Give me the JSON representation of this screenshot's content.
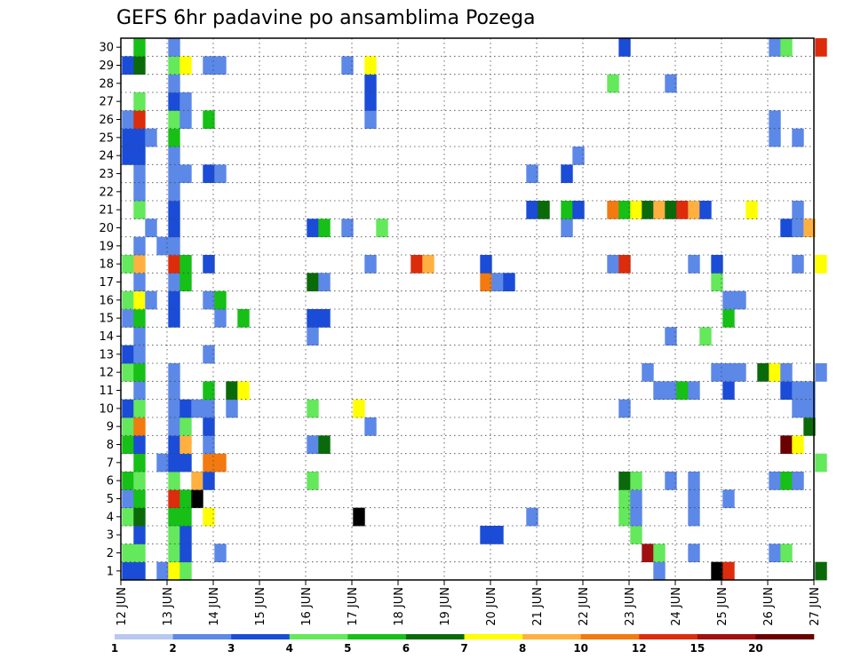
{
  "chart_data": {
    "type": "heatmap",
    "title": "GEFS 6hr padavine po ansamblima Pozega",
    "x_tick_labels": [
      "12 JUN",
      "13 JUN",
      "14 JUN",
      "15 JUN",
      "16 JUN",
      "17 JUN",
      "18 JUN",
      "19 JUN",
      "20 JUN",
      "21 JUN",
      "22 JUN",
      "23 JUN",
      "24 JUN",
      "25 JUN",
      "26 JUN",
      "27 JUN"
    ],
    "y_tick_labels": [
      "1",
      "2",
      "3",
      "4",
      "5",
      "6",
      "7",
      "8",
      "9",
      "10",
      "11",
      "12",
      "13",
      "14",
      "15",
      "16",
      "17",
      "18",
      "19",
      "20",
      "21",
      "22",
      "23",
      "24",
      "25",
      "26",
      "27",
      "28",
      "29",
      "30"
    ],
    "x_unit": "6-hour step starting 12 JUN 00Z",
    "ylim": [
      0.5,
      30.5
    ],
    "grid": "dotted",
    "colorbar": {
      "labels": [
        "1",
        "2",
        "3",
        "4",
        "5",
        "6",
        "7",
        "8",
        "10",
        "12",
        "15",
        "20"
      ],
      "colors": [
        "#b8c8f0",
        "#5c88e8",
        "#1a4cd8",
        "#64e85c",
        "#16c016",
        "#0a6a0a",
        "#ffff00",
        "#ffb040",
        "#f27a10",
        "#dc2c0c",
        "#a01010",
        "#6a0000"
      ]
    },
    "cells": [
      [
        1,
        1,
        2
      ],
      [
        1,
        2,
        3
      ],
      [
        1,
        4,
        3
      ],
      [
        1,
        5,
        1
      ],
      [
        1,
        6,
        4
      ],
      [
        1,
        8,
        4
      ],
      [
        1,
        9,
        3
      ],
      [
        1,
        10,
        2
      ],
      [
        1,
        12,
        3
      ],
      [
        1,
        13,
        2
      ],
      [
        1,
        15,
        1
      ],
      [
        1,
        16,
        3
      ],
      [
        1,
        18,
        3
      ],
      [
        1,
        24,
        2
      ],
      [
        1,
        25,
        2
      ],
      [
        1,
        26,
        1
      ],
      [
        1,
        29,
        2
      ],
      [
        2,
        1,
        2
      ],
      [
        2,
        2,
        3
      ],
      [
        2,
        3,
        2
      ],
      [
        2,
        4,
        5
      ],
      [
        2,
        5,
        4
      ],
      [
        2,
        6,
        3
      ],
      [
        2,
        7,
        4
      ],
      [
        2,
        8,
        2
      ],
      [
        2,
        9,
        8
      ],
      [
        2,
        10,
        3
      ],
      [
        2,
        11,
        1
      ],
      [
        2,
        12,
        4
      ],
      [
        2,
        13,
        1
      ],
      [
        2,
        14,
        1
      ],
      [
        2,
        15,
        4
      ],
      [
        2,
        16,
        6
      ],
      [
        2,
        17,
        1
      ],
      [
        2,
        18,
        7
      ],
      [
        2,
        19,
        1
      ],
      [
        2,
        21,
        3
      ],
      [
        2,
        22,
        1
      ],
      [
        2,
        23,
        1
      ],
      [
        2,
        24,
        2
      ],
      [
        2,
        25,
        2
      ],
      [
        2,
        26,
        9
      ],
      [
        2,
        27,
        3
      ],
      [
        2,
        29,
        5
      ],
      [
        2,
        30,
        4
      ],
      [
        3,
        16,
        1
      ],
      [
        3,
        20,
        1
      ],
      [
        3,
        25,
        1
      ],
      [
        4,
        1,
        1
      ],
      [
        4,
        7,
        1
      ],
      [
        4,
        19,
        1
      ],
      [
        5,
        1,
        6
      ],
      [
        5,
        2,
        3
      ],
      [
        5,
        3,
        3
      ],
      [
        5,
        4,
        4
      ],
      [
        5,
        5,
        9
      ],
      [
        5,
        6,
        3
      ],
      [
        5,
        7,
        2
      ],
      [
        5,
        8,
        2
      ],
      [
        5,
        9,
        1
      ],
      [
        5,
        10,
        1
      ],
      [
        5,
        11,
        1
      ],
      [
        5,
        12,
        1
      ],
      [
        5,
        15,
        2
      ],
      [
        5,
        16,
        2
      ],
      [
        5,
        17,
        1
      ],
      [
        5,
        18,
        9
      ],
      [
        5,
        19,
        1
      ],
      [
        5,
        20,
        2
      ],
      [
        5,
        21,
        2
      ],
      [
        5,
        22,
        1
      ],
      [
        5,
        23,
        1
      ],
      [
        5,
        24,
        1
      ],
      [
        5,
        25,
        4
      ],
      [
        5,
        26,
        3
      ],
      [
        5,
        27,
        2
      ],
      [
        5,
        28,
        1
      ],
      [
        5,
        29,
        3
      ],
      [
        5,
        30,
        1
      ],
      [
        6,
        1,
        3
      ],
      [
        6,
        2,
        2
      ],
      [
        6,
        3,
        2
      ],
      [
        6,
        4,
        4
      ],
      [
        6,
        5,
        4
      ],
      [
        6,
        7,
        2
      ],
      [
        6,
        8,
        7
      ],
      [
        6,
        9,
        3
      ],
      [
        6,
        10,
        2
      ],
      [
        6,
        17,
        4
      ],
      [
        6,
        18,
        4
      ],
      [
        6,
        23,
        1
      ],
      [
        6,
        26,
        1
      ],
      [
        6,
        27,
        1
      ],
      [
        6,
        29,
        6
      ],
      [
        7,
        5,
        12
      ],
      [
        7,
        6,
        7
      ],
      [
        7,
        10,
        1
      ],
      [
        8,
        4,
        6
      ],
      [
        8,
        6,
        2
      ],
      [
        8,
        7,
        8
      ],
      [
        8,
        8,
        1
      ],
      [
        8,
        9,
        2
      ],
      [
        8,
        10,
        1
      ],
      [
        8,
        11,
        4
      ],
      [
        8,
        13,
        1
      ],
      [
        8,
        16,
        1
      ],
      [
        8,
        18,
        2
      ],
      [
        8,
        23,
        2
      ],
      [
        8,
        26,
        4
      ],
      [
        8,
        29,
        1
      ],
      [
        9,
        2,
        1
      ],
      [
        9,
        7,
        8
      ],
      [
        9,
        15,
        1
      ],
      [
        9,
        16,
        4
      ],
      [
        9,
        23,
        1
      ],
      [
        9,
        29,
        1
      ],
      [
        10,
        10,
        1
      ],
      [
        10,
        11,
        5
      ],
      [
        11,
        11,
        6
      ],
      [
        11,
        15,
        4
      ],
      [
        17,
        6,
        3
      ],
      [
        17,
        8,
        1
      ],
      [
        17,
        10,
        3
      ],
      [
        17,
        14,
        1
      ],
      [
        17,
        15,
        2
      ],
      [
        17,
        17,
        5
      ],
      [
        17,
        20,
        2
      ],
      [
        18,
        8,
        5
      ],
      [
        18,
        15,
        2
      ],
      [
        18,
        17,
        1
      ],
      [
        18,
        20,
        4
      ],
      [
        20,
        20,
        1
      ],
      [
        20,
        29,
        1
      ],
      [
        21,
        4,
        12
      ],
      [
        21,
        10,
        6
      ],
      [
        22,
        9,
        1
      ],
      [
        22,
        18,
        1
      ],
      [
        22,
        26,
        1
      ],
      [
        22,
        27,
        2
      ],
      [
        22,
        28,
        2
      ],
      [
        22,
        29,
        6
      ],
      [
        23,
        20,
        3
      ],
      [
        26,
        18,
        9
      ],
      [
        27,
        18,
        7
      ],
      [
        32,
        3,
        2
      ],
      [
        32,
        17,
        8
      ],
      [
        32,
        18,
        2
      ],
      [
        33,
        3,
        2
      ],
      [
        33,
        17,
        1
      ],
      [
        34,
        17,
        2
      ],
      [
        36,
        4,
        1
      ],
      [
        36,
        21,
        2
      ],
      [
        36,
        23,
        1
      ],
      [
        37,
        21,
        5
      ],
      [
        39,
        20,
        1
      ],
      [
        39,
        21,
        4
      ],
      [
        39,
        23,
        2
      ],
      [
        40,
        21,
        2
      ],
      [
        40,
        24,
        1
      ],
      [
        43,
        18,
        1
      ],
      [
        43,
        21,
        8
      ],
      [
        43,
        28,
        3
      ],
      [
        44,
        4,
        3
      ],
      [
        44,
        5,
        3
      ],
      [
        44,
        6,
        5
      ],
      [
        44,
        10,
        1
      ],
      [
        44,
        18,
        9
      ],
      [
        44,
        21,
        4
      ],
      [
        44,
        30,
        2
      ],
      [
        45,
        3,
        3
      ],
      [
        45,
        4,
        1
      ],
      [
        45,
        5,
        1
      ],
      [
        45,
        6,
        3
      ],
      [
        45,
        21,
        6
      ],
      [
        46,
        2,
        10
      ],
      [
        46,
        12,
        1
      ],
      [
        46,
        21,
        5
      ],
      [
        47,
        1,
        1
      ],
      [
        47,
        2,
        3
      ],
      [
        47,
        11,
        1
      ],
      [
        47,
        21,
        7
      ],
      [
        48,
        6,
        1
      ],
      [
        48,
        11,
        1
      ],
      [
        48,
        14,
        1
      ],
      [
        48,
        21,
        5
      ],
      [
        48,
        28,
        1
      ],
      [
        49,
        11,
        4
      ],
      [
        49,
        21,
        9
      ],
      [
        50,
        2,
        1
      ],
      [
        50,
        4,
        1
      ],
      [
        50,
        5,
        1
      ],
      [
        50,
        6,
        1
      ],
      [
        50,
        11,
        1
      ],
      [
        50,
        18,
        1
      ],
      [
        50,
        21,
        7
      ],
      [
        51,
        14,
        3
      ],
      [
        51,
        21,
        2
      ],
      [
        52,
        1,
        12
      ],
      [
        52,
        12,
        1
      ],
      [
        52,
        17,
        3
      ],
      [
        52,
        18,
        2
      ],
      [
        53,
        1,
        9
      ],
      [
        53,
        5,
        1
      ],
      [
        53,
        11,
        2
      ],
      [
        53,
        12,
        1
      ],
      [
        53,
        15,
        4
      ],
      [
        53,
        16,
        1
      ],
      [
        54,
        12,
        1
      ],
      [
        54,
        16,
        1
      ],
      [
        55,
        21,
        6
      ],
      [
        56,
        12,
        5
      ],
      [
        57,
        2,
        1
      ],
      [
        57,
        6,
        1
      ],
      [
        57,
        12,
        6
      ],
      [
        57,
        25,
        1
      ],
      [
        57,
        26,
        1
      ],
      [
        57,
        30,
        1
      ],
      [
        58,
        2,
        3
      ],
      [
        58,
        6,
        4
      ],
      [
        58,
        8,
        11
      ],
      [
        58,
        11,
        2
      ],
      [
        58,
        12,
        1
      ],
      [
        58,
        20,
        2
      ],
      [
        58,
        30,
        3
      ],
      [
        59,
        6,
        1
      ],
      [
        59,
        8,
        6
      ],
      [
        59,
        10,
        1
      ],
      [
        59,
        11,
        1
      ],
      [
        59,
        18,
        1
      ],
      [
        59,
        20,
        1
      ],
      [
        59,
        21,
        1
      ],
      [
        59,
        25,
        1
      ],
      [
        60,
        9,
        5
      ],
      [
        60,
        10,
        1
      ],
      [
        60,
        11,
        1
      ],
      [
        60,
        20,
        7
      ],
      [
        61,
        1,
        5
      ],
      [
        61,
        7,
        3
      ],
      [
        61,
        12,
        1
      ],
      [
        61,
        18,
        6
      ],
      [
        61,
        30,
        9
      ]
    ]
  }
}
